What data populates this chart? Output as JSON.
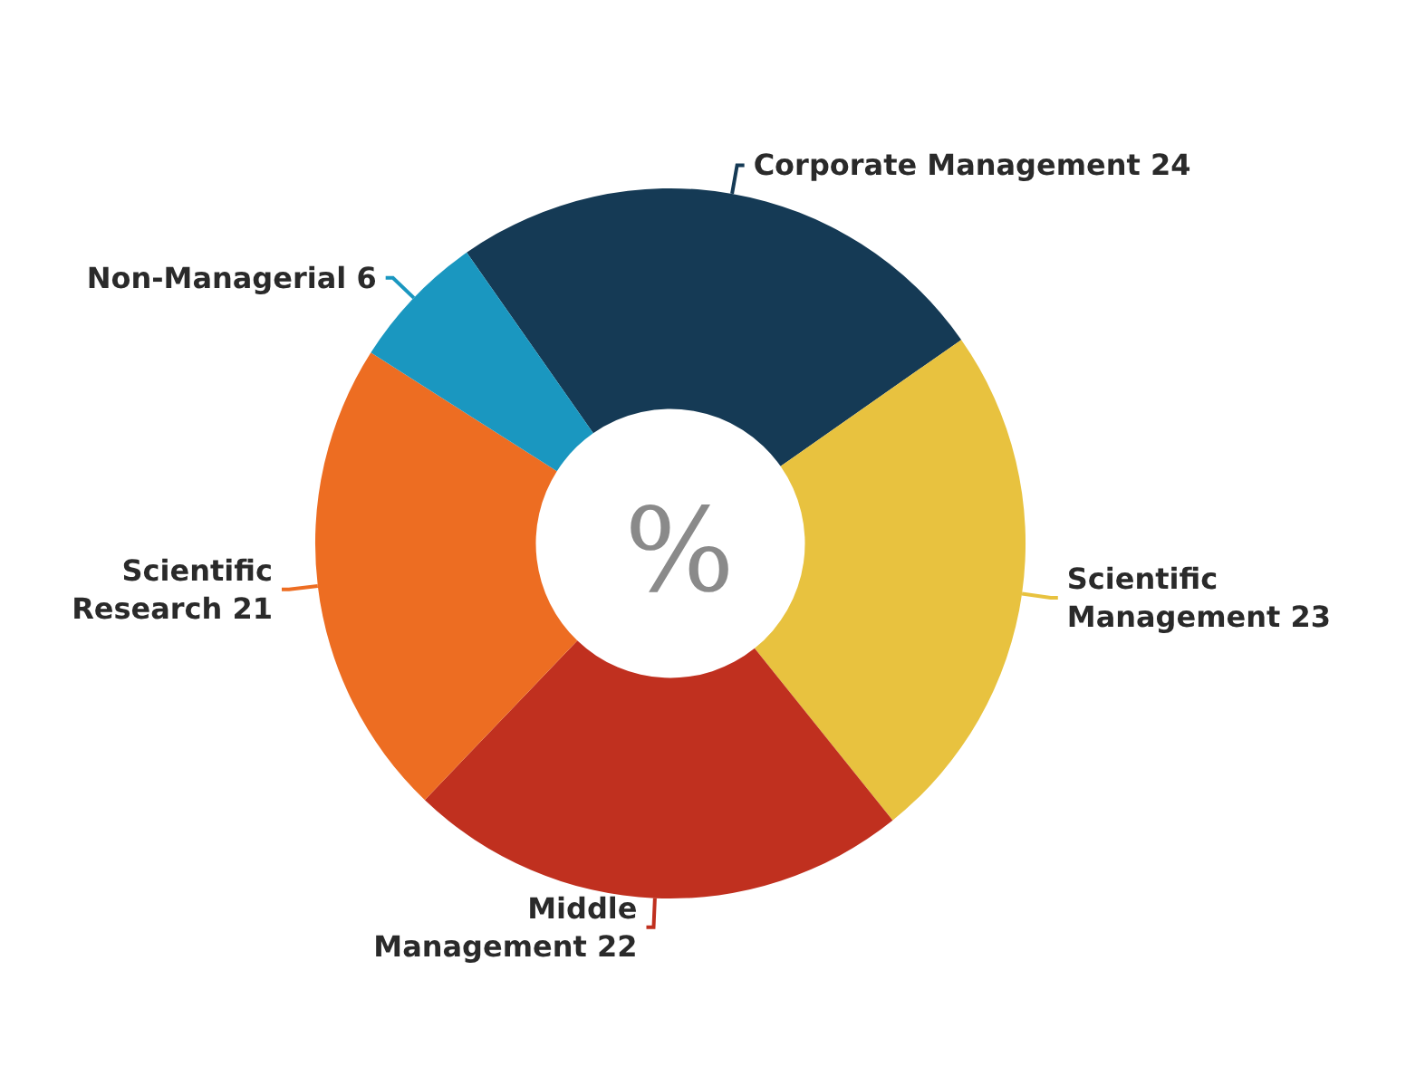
{
  "chart_data": {
    "type": "donut",
    "title": "%",
    "categories": [
      "Corporate Management",
      "Scientific Management",
      "Middle Management",
      "Scientific Research",
      "Non-Managerial"
    ],
    "values": [
      24,
      23,
      22,
      21,
      6
    ],
    "colors": [
      "#153a55",
      "#e8c23f",
      "#c0301f",
      "#ed6d22",
      "#1a97c0"
    ],
    "data_labels": true,
    "legend": false
  }
}
